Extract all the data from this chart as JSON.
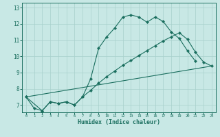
{
  "xlabel": "Humidex (Indice chaleur)",
  "bg_color": "#c8e8e5",
  "grid_color": "#a8d0cc",
  "line_color": "#1a6e5e",
  "xlim": [
    -0.5,
    23.5
  ],
  "ylim": [
    6.55,
    13.3
  ],
  "yticks": [
    7,
    8,
    9,
    10,
    11,
    12,
    13
  ],
  "xticks": [
    0,
    1,
    2,
    3,
    4,
    5,
    6,
    7,
    8,
    9,
    10,
    11,
    12,
    13,
    14,
    15,
    16,
    17,
    18,
    19,
    20,
    21,
    22,
    23
  ],
  "curve1_x": [
    0,
    1,
    2,
    3,
    4,
    5,
    6,
    7,
    8,
    9,
    10,
    11,
    12,
    13,
    14,
    15,
    16,
    17,
    18,
    19,
    20,
    21
  ],
  "curve1_y": [
    7.5,
    6.8,
    6.65,
    7.2,
    7.1,
    7.2,
    7.0,
    7.5,
    8.6,
    10.5,
    11.2,
    11.75,
    12.42,
    12.55,
    12.42,
    12.1,
    12.42,
    12.15,
    11.5,
    11.1,
    10.35,
    9.7
  ],
  "curve2_x": [
    0,
    2,
    3,
    4,
    5,
    6,
    7,
    8,
    9,
    10,
    11,
    12,
    13,
    14,
    15,
    16,
    17,
    18,
    19,
    20,
    21,
    22,
    23
  ],
  "curve2_y": [
    7.5,
    6.65,
    7.2,
    7.1,
    7.2,
    7.0,
    7.5,
    7.9,
    8.35,
    8.75,
    9.1,
    9.45,
    9.75,
    10.05,
    10.35,
    10.65,
    10.95,
    11.2,
    11.45,
    11.05,
    10.25,
    9.65,
    9.4
  ],
  "curve3_x": [
    0,
    23
  ],
  "curve3_y": [
    7.5,
    9.4
  ]
}
